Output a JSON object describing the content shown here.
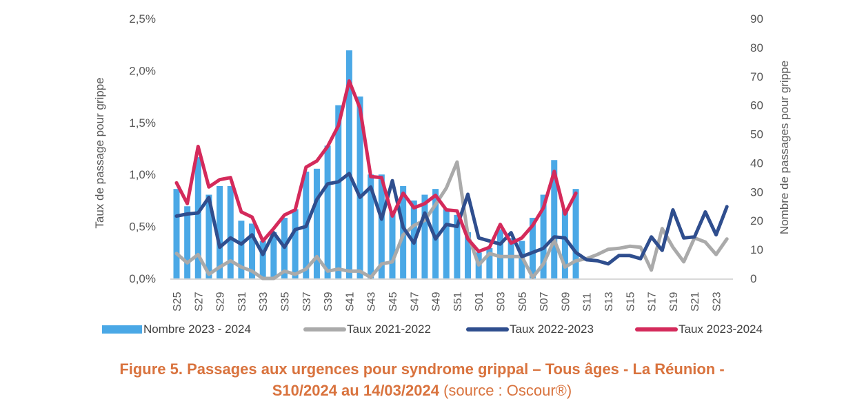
{
  "chart_data": {
    "type": "bar+line",
    "title": "Figure 5. Passages aux urgences pour syndrome grippal – Tous âges - La Réunion -",
    "subtitle_bold": "S10/2024 au 14/03/2024",
    "subtitle_source": "(source : Oscour®)",
    "ylabel_left": "Taux de passage pour grippe",
    "ylabel_right": "Nombre de passages pour grippe",
    "ylim_left": [
      0,
      2.5
    ],
    "ylim_right": [
      0,
      90
    ],
    "yticks_left": [
      "0,0%",
      "0,5%",
      "1,0%",
      "1,5%",
      "2,0%",
      "2,5%"
    ],
    "yticks_right": [
      "0",
      "10",
      "20",
      "30",
      "40",
      "50",
      "60",
      "70",
      "80",
      "90"
    ],
    "grid": false,
    "legend_position": "bottom",
    "categories": [
      "S25",
      "S26",
      "S27",
      "S28",
      "S29",
      "S30",
      "S31",
      "S32",
      "S33",
      "S34",
      "S35",
      "S36",
      "S37",
      "S38",
      "S39",
      "S40",
      "S41",
      "S42",
      "S43",
      "S44",
      "S45",
      "S46",
      "S47",
      "S48",
      "S49",
      "S50",
      "S51",
      "S52",
      "S01",
      "S02",
      "S03",
      "S04",
      "S05",
      "S06",
      "S07",
      "S08",
      "S09",
      "S10",
      "S11",
      "S12",
      "S13",
      "S14",
      "S15",
      "S16",
      "S17",
      "S18",
      "S19",
      "S20",
      "S21",
      "S22",
      "S23",
      "S24"
    ],
    "xtick_labels": [
      "S25",
      "S27",
      "S29",
      "S31",
      "S33",
      "S35",
      "S37",
      "S39",
      "S41",
      "S43",
      "S45",
      "S47",
      "S49",
      "S51",
      "S01",
      "S03",
      "S05",
      "S07",
      "S09",
      "S11",
      "S13",
      "S15",
      "S17",
      "S19",
      "S21",
      "S23"
    ],
    "series": [
      {
        "name": "Nombre 2023 - 2024",
        "kind": "bar",
        "axis": "right",
        "color": "#4aa8e6",
        "values": [
          31,
          25,
          42,
          29,
          32,
          32,
          20,
          19,
          13,
          16,
          21,
          24,
          37,
          38,
          46,
          60,
          79,
          63,
          36,
          36,
          23,
          32,
          27,
          29,
          31,
          24,
          22,
          16,
          9,
          10.5,
          17,
          14,
          13,
          21,
          29,
          41,
          24,
          31,
          null,
          null,
          null,
          null,
          null,
          null,
          null,
          null,
          null,
          null,
          null,
          null,
          null,
          null
        ]
      },
      {
        "name": "Taux 2021-2022",
        "kind": "line",
        "axis": "left",
        "color": "#aaaaaa",
        "values": [
          0.24,
          0.15,
          0.23,
          0.04,
          0.11,
          0.17,
          0.11,
          0.07,
          0.0,
          0.0,
          0.07,
          0.04,
          0.09,
          0.21,
          0.07,
          0.09,
          0.07,
          0.07,
          0.01,
          0.14,
          0.16,
          0.42,
          0.51,
          0.56,
          0.71,
          0.87,
          1.12,
          0.42,
          0.13,
          0.24,
          0.21,
          0.21,
          0.21,
          0.01,
          0.14,
          0.37,
          0.11,
          0.17,
          0.19,
          0.23,
          0.28,
          0.29,
          0.31,
          0.3,
          0.08,
          0.48,
          0.3,
          0.16,
          0.39,
          0.35,
          0.23,
          0.38
        ]
      },
      {
        "name": "Taux 2022-2023",
        "kind": "line",
        "axis": "left",
        "color": "#2f4e8e",
        "values": [
          0.6,
          0.62,
          0.63,
          0.78,
          0.3,
          0.39,
          0.33,
          0.42,
          0.23,
          0.44,
          0.3,
          0.47,
          0.5,
          0.76,
          0.91,
          0.93,
          1.01,
          0.78,
          0.88,
          0.57,
          0.94,
          0.49,
          0.34,
          0.63,
          0.38,
          0.52,
          0.5,
          0.81,
          0.39,
          0.36,
          0.33,
          0.44,
          0.21,
          0.25,
          0.29,
          0.4,
          0.39,
          0.25,
          0.18,
          0.17,
          0.14,
          0.22,
          0.22,
          0.19,
          0.4,
          0.27,
          0.66,
          0.39,
          0.4,
          0.64,
          0.42,
          0.69
        ]
      },
      {
        "name": "Taux 2023-2024",
        "kind": "line",
        "axis": "left",
        "color": "#d42a5b",
        "values": [
          0.92,
          0.72,
          1.27,
          0.88,
          0.95,
          0.97,
          0.64,
          0.59,
          0.36,
          0.48,
          0.61,
          0.66,
          1.07,
          1.13,
          1.27,
          1.47,
          1.9,
          1.64,
          0.98,
          0.97,
          0.6,
          0.82,
          0.68,
          0.72,
          0.8,
          0.66,
          0.65,
          0.38,
          0.26,
          0.3,
          0.52,
          0.34,
          0.39,
          0.51,
          0.68,
          1.03,
          0.62,
          0.82,
          null,
          null,
          null,
          null,
          null,
          null,
          null,
          null,
          null,
          null,
          null,
          null,
          null,
          null
        ]
      }
    ]
  },
  "legend": {
    "items": [
      {
        "label": "Nombre 2023 - 2024",
        "color": "#4aa8e6",
        "kind": "bar"
      },
      {
        "label": "Taux 2021-2022",
        "color": "#aaaaaa",
        "kind": "line"
      },
      {
        "label": "Taux 2022-2023",
        "color": "#2f4e8e",
        "kind": "line"
      },
      {
        "label": "Taux 2023-2024",
        "color": "#d42a5b",
        "kind": "line"
      }
    ]
  },
  "caption": {
    "line1": "Figure 5. Passages aux urgences pour syndrome grippal – Tous âges - La Réunion -",
    "line2_bold": "S10/2024 au 14/03/2024",
    "line2_source": " (source : Oscour®)"
  }
}
